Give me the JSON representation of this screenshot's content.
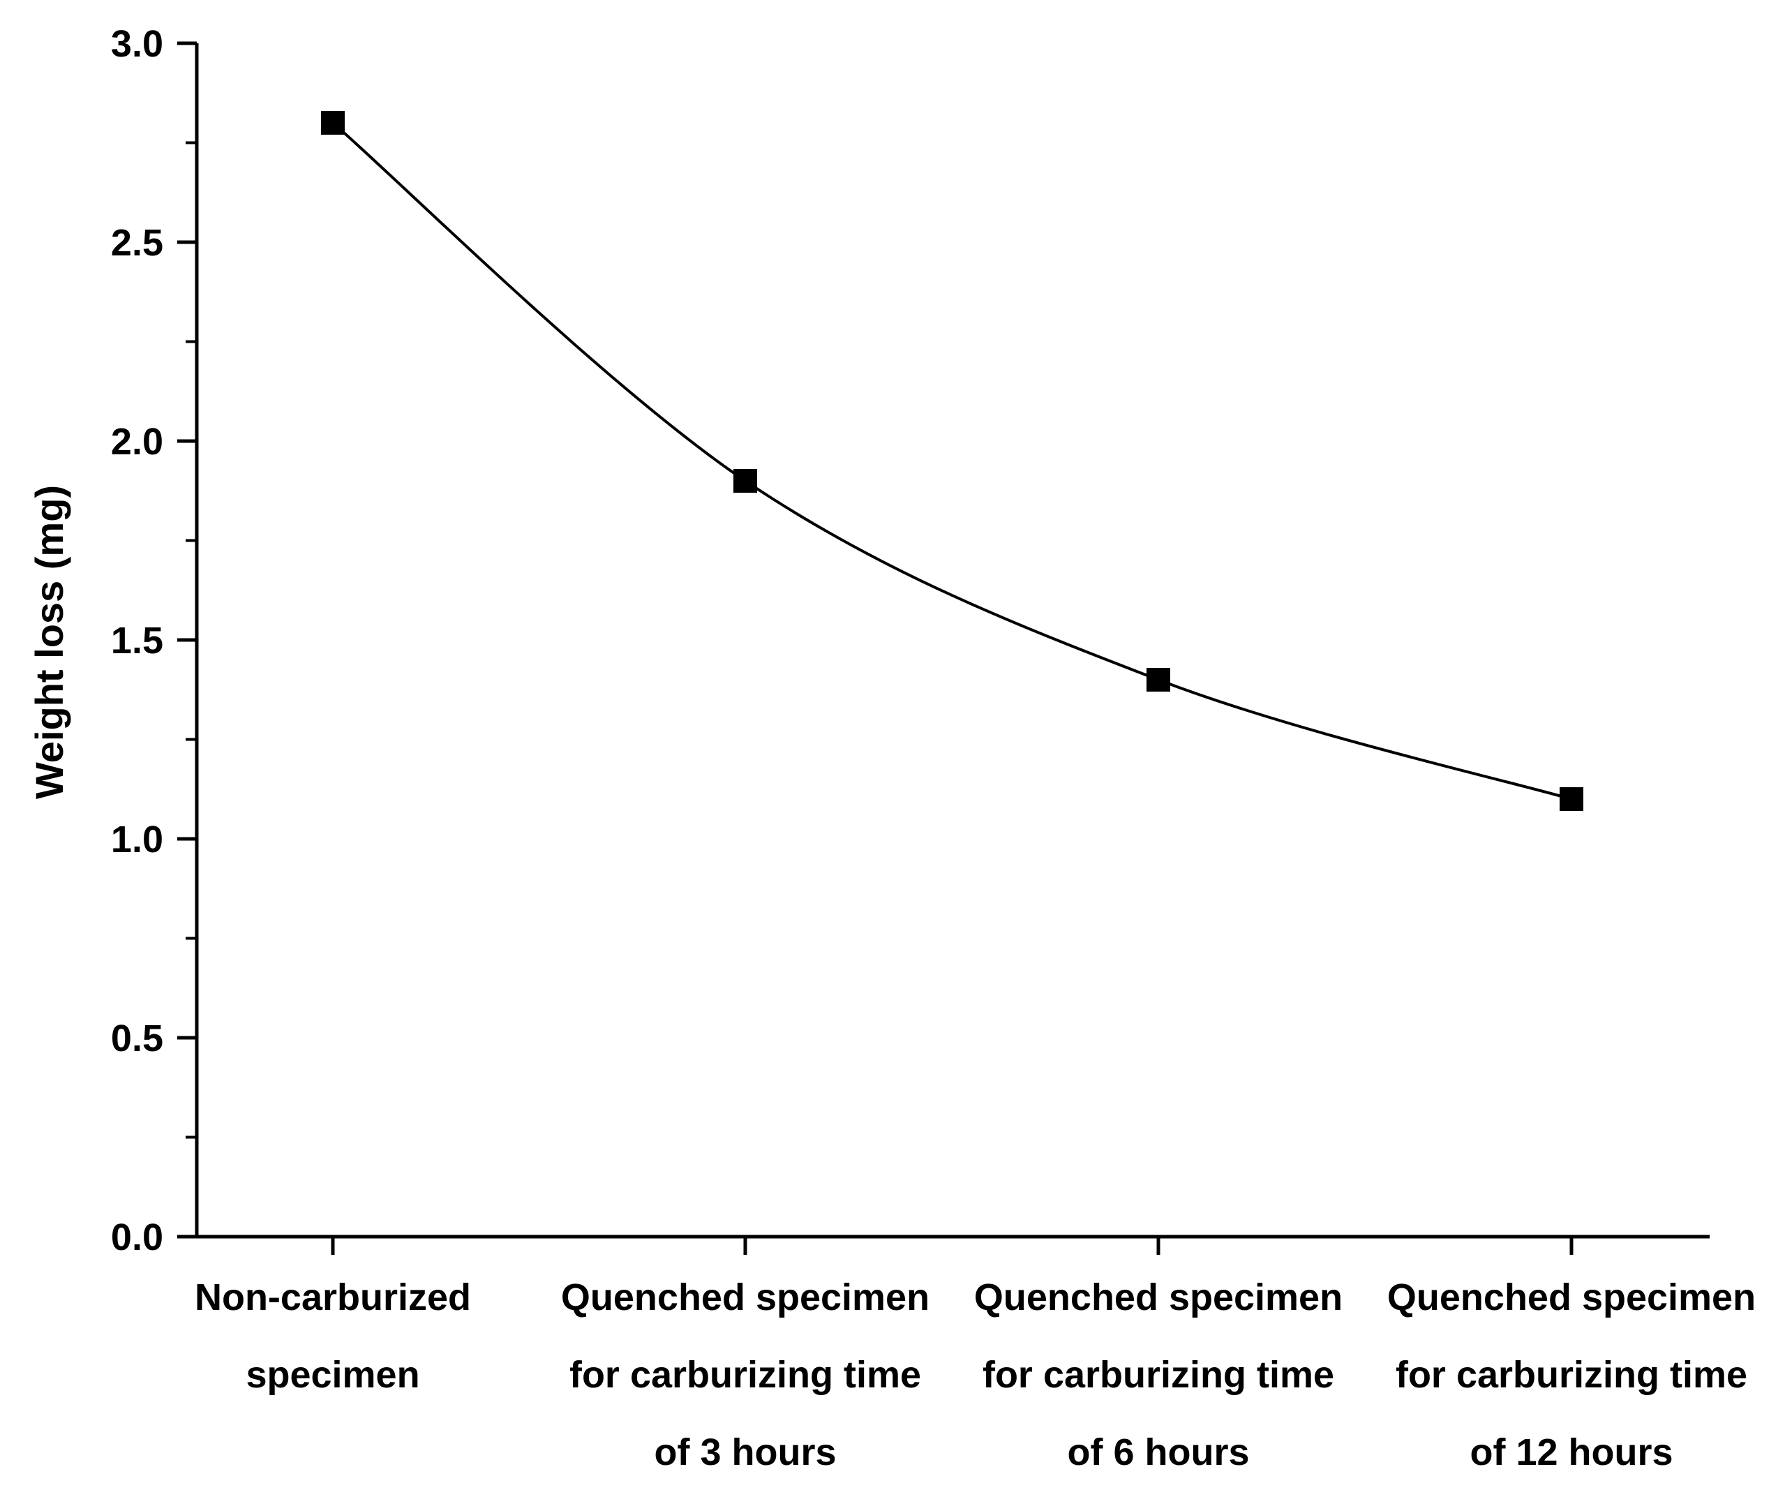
{
  "chart_data": {
    "type": "line",
    "title": "",
    "xlabel": "",
    "ylabel": "Weight loss (mg)",
    "ylim": [
      0,
      3.0
    ],
    "yticks": [
      "0.0",
      "0.5",
      "1.0",
      "1.5",
      "2.0",
      "2.5",
      "3.0"
    ],
    "categories": [
      [
        "Non-carburized",
        "specimen"
      ],
      [
        "Quenched specimen",
        "for carburizing time",
        "of 3 hours"
      ],
      [
        "Quenched specimen",
        "for carburizing time",
        "of 6 hours"
      ],
      [
        "Quenched specimen",
        "for carburizing time",
        "of 12 hours"
      ]
    ],
    "series": [
      {
        "name": "Weight loss",
        "values": [
          2.8,
          1.9,
          1.4,
          1.1
        ],
        "marker": "square",
        "color": "#000000"
      }
    ],
    "grid": false,
    "legend": "none"
  }
}
